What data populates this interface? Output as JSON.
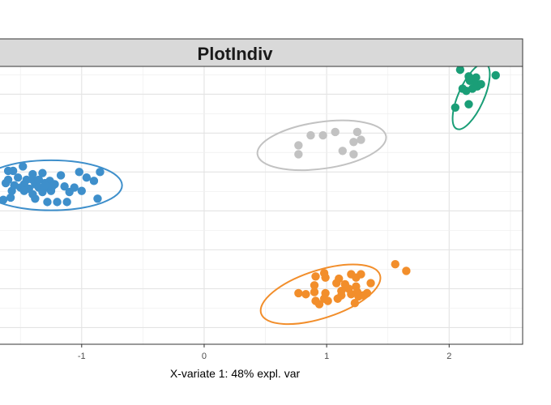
{
  "chart_data": {
    "type": "scatter",
    "title": "PlotIndiv",
    "xlabel": "X-variate 1: 48% expl. var",
    "ylabel": "",
    "grid": true,
    "legend": "none",
    "xlim": [
      -1.68,
      2.6
    ],
    "ylim": [
      -1.5,
      1.0
    ],
    "x_ticks": [
      -1,
      0,
      1,
      2
    ],
    "x_tick_labels": [
      "-1",
      "0",
      "1",
      "2"
    ],
    "y_ticks": [
      -1.35,
      -1.0,
      -0.65,
      -0.3,
      0.05,
      0.4,
      0.75
    ],
    "series": [
      {
        "color": "#3E8FCB",
        "ellipse": {
          "cx": -1.25,
          "cy": -0.07,
          "rx": 0.58,
          "ry": 0.225,
          "angle_deg": 0
        },
        "points": [
          [
            -1.48,
            0.1
          ],
          [
            -1.56,
            0.06
          ],
          [
            -1.6,
            0.06
          ],
          [
            -1.52,
            0.0
          ],
          [
            -1.45,
            -0.02
          ],
          [
            -1.4,
            -0.02
          ],
          [
            -1.38,
            -0.06
          ],
          [
            -1.47,
            -0.06
          ],
          [
            -1.55,
            -0.07
          ],
          [
            -1.62,
            -0.05
          ],
          [
            -1.5,
            -0.09
          ],
          [
            -1.43,
            -0.1
          ],
          [
            -1.35,
            -0.09
          ],
          [
            -1.3,
            -0.05
          ],
          [
            -1.26,
            -0.03
          ],
          [
            -1.22,
            -0.06
          ],
          [
            -1.28,
            -0.09
          ],
          [
            -1.25,
            -0.12
          ],
          [
            -1.32,
            -0.13
          ],
          [
            -1.4,
            -0.15
          ],
          [
            -1.47,
            -0.12
          ],
          [
            -1.38,
            -0.19
          ],
          [
            -1.28,
            -0.22
          ],
          [
            -1.2,
            -0.22
          ],
          [
            -1.12,
            -0.22
          ],
          [
            -1.1,
            -0.13
          ],
          [
            -1.14,
            -0.08
          ],
          [
            -1.06,
            -0.09
          ],
          [
            -1.0,
            -0.12
          ],
          [
            -0.9,
            -0.03
          ],
          [
            -0.85,
            0.05
          ],
          [
            -0.96,
            0.0
          ],
          [
            -1.02,
            0.05
          ],
          [
            -1.17,
            0.02
          ],
          [
            -1.32,
            0.04
          ],
          [
            -1.4,
            0.03
          ],
          [
            -1.58,
            -0.18
          ],
          [
            -1.64,
            -0.2
          ],
          [
            -1.57,
            -0.12
          ],
          [
            -0.87,
            -0.19
          ],
          [
            -1.24,
            -0.08
          ],
          [
            -1.3,
            -0.07
          ],
          [
            -1.35,
            -0.02
          ],
          [
            -1.6,
            -0.02
          ]
        ]
      },
      {
        "color": "#C2C2C2",
        "ellipse": {
          "cx": 0.96,
          "cy": 0.29,
          "rx": 0.53,
          "ry": 0.21,
          "angle_deg": -8
        },
        "points": [
          [
            0.87,
            0.38
          ],
          [
            0.97,
            0.38
          ],
          [
            1.07,
            0.41
          ],
          [
            1.25,
            0.41
          ],
          [
            1.28,
            0.34
          ],
          [
            1.22,
            0.32
          ],
          [
            0.77,
            0.29
          ],
          [
            1.13,
            0.24
          ],
          [
            1.22,
            0.21
          ],
          [
            0.77,
            0.21
          ]
        ]
      },
      {
        "color": "#F28E2B",
        "ellipse": {
          "cx": 0.95,
          "cy": -1.05,
          "rx": 0.51,
          "ry": 0.215,
          "angle_deg": -18
        },
        "points": [
          [
            1.56,
            -0.78
          ],
          [
            1.65,
            -0.84
          ],
          [
            0.98,
            -0.86
          ],
          [
            1.2,
            -0.87
          ],
          [
            1.28,
            -0.87
          ],
          [
            0.91,
            -0.89
          ],
          [
            0.99,
            -0.9
          ],
          [
            1.1,
            -0.91
          ],
          [
            1.24,
            -0.9
          ],
          [
            0.9,
            -0.97
          ],
          [
            1.08,
            -0.95
          ],
          [
            1.15,
            -0.96
          ],
          [
            1.24,
            -0.98
          ],
          [
            1.36,
            -0.95
          ],
          [
            1.18,
            -1.0
          ],
          [
            0.77,
            -1.04
          ],
          [
            0.9,
            -1.03
          ],
          [
            0.99,
            -1.04
          ],
          [
            1.12,
            -1.02
          ],
          [
            1.2,
            -1.05
          ],
          [
            1.25,
            -1.03
          ],
          [
            1.33,
            -1.04
          ],
          [
            0.83,
            -1.05
          ],
          [
            0.98,
            -1.09
          ],
          [
            1.09,
            -1.09
          ],
          [
            1.12,
            -1.06
          ],
          [
            1.26,
            -1.07
          ],
          [
            1.3,
            -1.06
          ],
          [
            1.01,
            -1.11
          ],
          [
            0.91,
            -1.11
          ],
          [
            0.94,
            -1.14
          ],
          [
            1.23,
            -1.13
          ]
        ]
      },
      {
        "color": "#1A9E77",
        "ellipse": {
          "cx": 2.18,
          "cy": 0.73,
          "rx": 0.29,
          "ry": 0.115,
          "angle_deg": -66
        },
        "points": [
          [
            2.09,
            0.97
          ],
          [
            2.16,
            0.91
          ],
          [
            2.22,
            0.9
          ],
          [
            2.38,
            0.92
          ],
          [
            2.17,
            0.87
          ],
          [
            2.22,
            0.84
          ],
          [
            2.26,
            0.84
          ],
          [
            2.11,
            0.8
          ],
          [
            2.19,
            0.8
          ],
          [
            2.14,
            0.78
          ],
          [
            2.23,
            0.82
          ],
          [
            2.16,
            0.66
          ],
          [
            2.05,
            0.63
          ]
        ]
      }
    ]
  }
}
